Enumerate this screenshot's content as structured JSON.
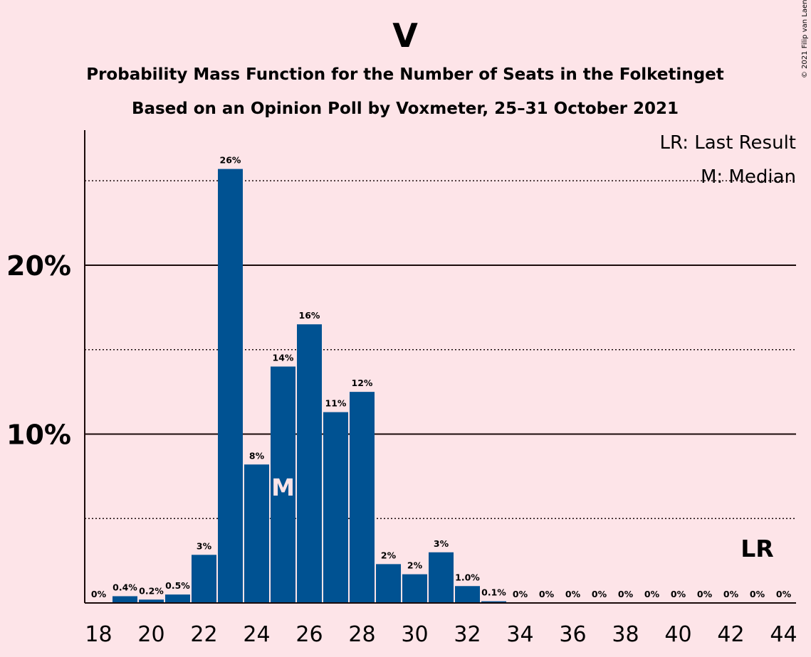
{
  "chart_data": {
    "type": "bar",
    "title": "V",
    "subtitle_lines": [
      "Probability Mass Function for the Number of Seats in the Folketinget",
      "Based on an Opinion Poll by Voxmeter, 25–31 October 2021"
    ],
    "x": [
      18,
      19,
      20,
      21,
      22,
      23,
      24,
      25,
      26,
      27,
      28,
      29,
      30,
      31,
      32,
      33,
      34,
      35,
      36,
      37,
      38,
      39,
      40,
      41,
      42,
      43,
      44
    ],
    "values": [
      0,
      0.4,
      0.2,
      0.5,
      2.85,
      25.7,
      8.2,
      14.0,
      16.5,
      11.3,
      12.5,
      2.3,
      1.7,
      3.0,
      1.0,
      0.1,
      0,
      0,
      0,
      0,
      0,
      0,
      0,
      0,
      0,
      0,
      0
    ],
    "value_labels": [
      "0%",
      "0.4%",
      "0.2%",
      "0.5%",
      "3%",
      "26%",
      "8%",
      "14%",
      "16%",
      "11%",
      "12%",
      "2%",
      "2%",
      "3%",
      "1.0%",
      "0.1%",
      "0%",
      "0%",
      "0%",
      "0%",
      "0%",
      "0%",
      "0%",
      "0%",
      "0%",
      "0%",
      "0%"
    ],
    "x_tick_labels": [
      "18",
      "20",
      "22",
      "24",
      "26",
      "28",
      "30",
      "32",
      "34",
      "36",
      "38",
      "40",
      "42",
      "44"
    ],
    "y_tick_labels": [
      "10%",
      "20%"
    ],
    "ylim": [
      0,
      28
    ],
    "xlim": [
      17.5,
      44.5
    ],
    "median_seat": 25,
    "median_marker": "M",
    "last_result_seat": 43,
    "last_result_marker": "LR",
    "legend": [
      "LR: Last Result",
      "M: Median"
    ],
    "copyright": "© 2021 Filip van Laenen",
    "colors": {
      "bar": "#005292",
      "background": "#fde4e8",
      "text": "#1a0a0a",
      "median_text": "#fde4e8"
    }
  }
}
